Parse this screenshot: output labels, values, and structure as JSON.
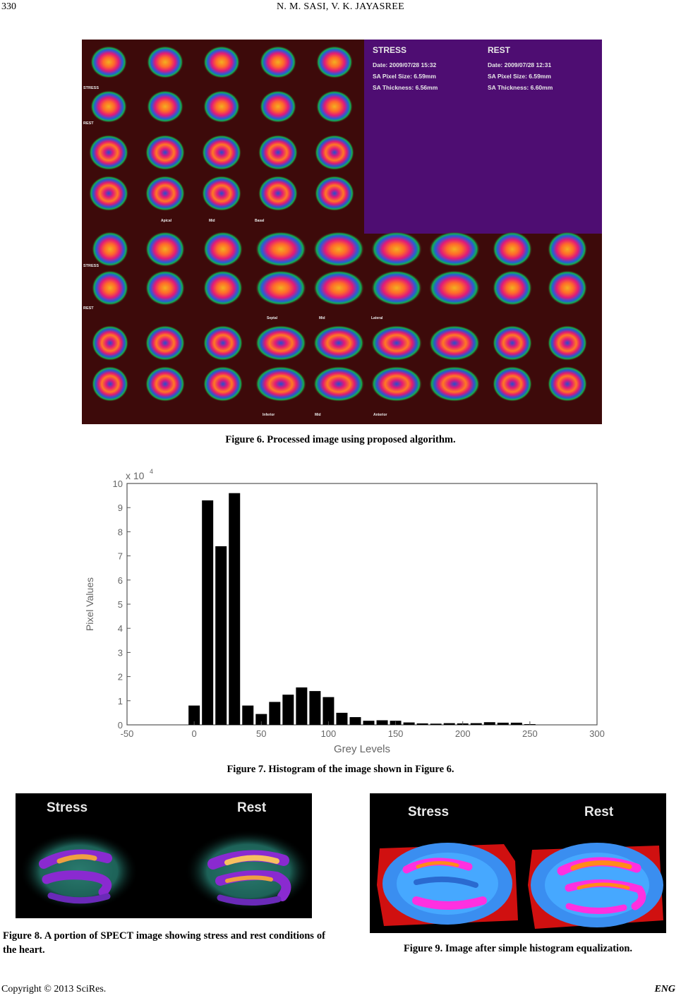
{
  "header": {
    "page_number": "330",
    "authors": "N. M. SASI, V. K. JAYASREE"
  },
  "figure6": {
    "caption": "Figure 6. Processed image using proposed algorithm.",
    "stress": {
      "title": "STRESS",
      "date": "Date: 2009/07/28 15:32",
      "pixel_size": "SA Pixel Size: 6.59mm",
      "thickness": "SA Thickness: 6.56mm"
    },
    "rest": {
      "title": "REST",
      "date": "Date: 2009/07/28 12:31",
      "pixel_size": "SA Pixel Size: 6.59mm",
      "thickness": "SA Thickness: 6.60mm"
    },
    "row_labels": [
      "STRESS",
      "REST",
      "STRESS",
      "REST"
    ],
    "axis_labels_1": [
      "Apical",
      "Mid",
      "Basal"
    ],
    "axis_labels_2": [
      "Septal",
      "Mid",
      "Lateral"
    ],
    "axis_labels_3": [
      "Inferior",
      "Mid",
      "Anterior"
    ],
    "colors": {
      "background": "#4e0d72",
      "panel": "#3a0808",
      "ring_outer": "#00a040",
      "ring_mid": "#e01e78",
      "ring_core": "#f0a028"
    }
  },
  "figure7": {
    "caption": "Figure 7. Histogram of the image shown in Figure 6.",
    "chart_data": {
      "type": "bar",
      "xlabel": "Grey Levels",
      "ylabel": "Pixel Values",
      "y_scale_label": "x 10",
      "y_scale_exp": "4",
      "xlim": [
        -50,
        300
      ],
      "ylim": [
        0,
        10
      ],
      "xticks": [
        "-50",
        "0",
        "50",
        "100",
        "150",
        "200",
        "250",
        "300"
      ],
      "yticks": [
        "0",
        "1",
        "2",
        "3",
        "4",
        "5",
        "6",
        "7",
        "8",
        "9",
        "10"
      ],
      "bin_width": 10,
      "bin_centers": [
        0,
        10,
        20,
        30,
        40,
        50,
        60,
        70,
        80,
        90,
        100,
        110,
        120,
        130,
        140,
        150,
        160,
        170,
        180,
        190,
        200,
        210,
        220,
        230,
        240,
        250
      ],
      "values": [
        0.8,
        9.3,
        7.4,
        9.6,
        0.8,
        0.45,
        0.95,
        1.25,
        1.55,
        1.4,
        1.15,
        0.5,
        0.32,
        0.17,
        0.19,
        0.17,
        0.1,
        0.06,
        0.05,
        0.07,
        0.06,
        0.07,
        0.11,
        0.09,
        0.09,
        0.03
      ],
      "bar_color": "#000000"
    }
  },
  "figure8": {
    "caption": "Figure 8. A portion of SPECT image showing stress and rest conditions of the heart.",
    "label_stress": "Stress",
    "label_rest": "Rest"
  },
  "figure9": {
    "caption": "Figure 9. Image after simple histogram equalization.",
    "label_stress": "Stress",
    "label_rest": "Rest"
  },
  "footer": {
    "copyright": "Copyright © 2013 SciRes.",
    "journal": "ENG"
  }
}
